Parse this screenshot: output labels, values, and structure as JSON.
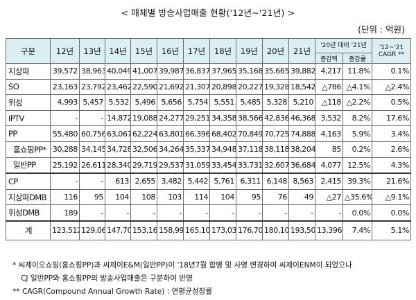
{
  "title": "< 매체별 방송사업매출 현황('12년~'21년) >",
  "unit": "(단위 : 억원)",
  "table": {
    "corner": "구분",
    "years": [
      "12년",
      "13년",
      "14년",
      "15년",
      "16년",
      "17년",
      "18년",
      "19년",
      "20년",
      "21년"
    ],
    "compare_group": "'20년 대비 '21년",
    "compare_sub": [
      "증감액",
      "증감률"
    ],
    "cagr_header": "'12~'21 CAGR **",
    "rows": [
      {
        "label": "지상파",
        "values": [
          "39,572",
          "38,963",
          "40,049",
          "41,007",
          "39,987",
          "36,837",
          "37,965",
          "35,168",
          "35,665",
          "39,882",
          "4,217",
          "11.8%",
          "0.1%"
        ]
      },
      {
        "label": "SO",
        "values": [
          "23,163",
          "23,792",
          "23,462",
          "22,590",
          "21,692",
          "21,307",
          "20,898",
          "20,227",
          "19,328",
          "18,542",
          "△786",
          "△4.1%",
          "△2.4%"
        ]
      },
      {
        "label": "위성",
        "values": [
          "4,993",
          "5,457",
          "5,532",
          "5,496",
          "5,656",
          "5,754",
          "5,551",
          "5,485",
          "5,328",
          "5,210",
          "△118",
          "△2.2%",
          "0.5%"
        ]
      },
      {
        "label": "IPTV",
        "values": [
          "-",
          "-",
          "14,872",
          "19,088",
          "24,277",
          "29,251",
          "34,358",
          "38,566",
          "42,836",
          "46,368",
          "3,532",
          "8.2%",
          "17.6%"
        ]
      },
      {
        "label": "PP",
        "values": [
          "55,480",
          "60,756",
          "63,067",
          "62,224",
          "63,801",
          "66,396",
          "68,402",
          "70,849",
          "70,725",
          "74,888",
          "4,163",
          "5.9%",
          "3.4%"
        ]
      },
      {
        "label": "홈쇼핑PP*",
        "values": [
          "30,288",
          "34,145",
          "34,728",
          "32,506",
          "34,264",
          "35,337",
          "34,948",
          "37,118",
          "38,118",
          "38,204",
          "85",
          "0.2%",
          "2.6%"
        ]
      },
      {
        "label": "일반PP",
        "values": [
          "25,192",
          "26,611",
          "28,340",
          "29,719",
          "29,537",
          "31,059",
          "33,454",
          "33,731",
          "32,607",
          "36,684",
          "4,077",
          "12.5%",
          "4.3%"
        ]
      },
      {
        "label": "CP",
        "values": [
          "-",
          "-",
          "613",
          "2,655",
          "3,482",
          "5,442",
          "5,761",
          "6,311",
          "6,148",
          "8,563",
          "2,415",
          "39.3%",
          "21.6%"
        ]
      },
      {
        "label": "지상파DMB",
        "values": [
          "116",
          "95",
          "104",
          "108",
          "103",
          "114",
          "104",
          "95",
          "76",
          "49",
          "△27",
          "△35.6%",
          "△9.1%"
        ]
      },
      {
        "label": "위성DMB",
        "values": [
          "189",
          "-",
          "-",
          "-",
          "-",
          "-",
          "-",
          "-",
          "-",
          "-",
          "-",
          "0.0%",
          "0.0%"
        ]
      }
    ],
    "total": {
      "label": "계",
      "values": [
        "123,512",
        "129,063",
        "147,700",
        "153,168",
        "158,998",
        "165,102",
        "173,039",
        "176,702",
        "180,106",
        "193,502",
        "13,396",
        "7.4%",
        "5.1%"
      ]
    }
  },
  "notes": [
    "* 씨제이오쇼핑(홈쇼핑PP)과 씨제이E&M(일반PP)이 '18년7월 합병 및 사명 변경하여 씨제이ENM이 되었으나",
    "CJ 일반PP와 홈쇼핑PP의 방송사업매출은 구분하여 반영",
    "** CAGR(Compound Annual Growth Rate) : 연평균성장률"
  ]
}
